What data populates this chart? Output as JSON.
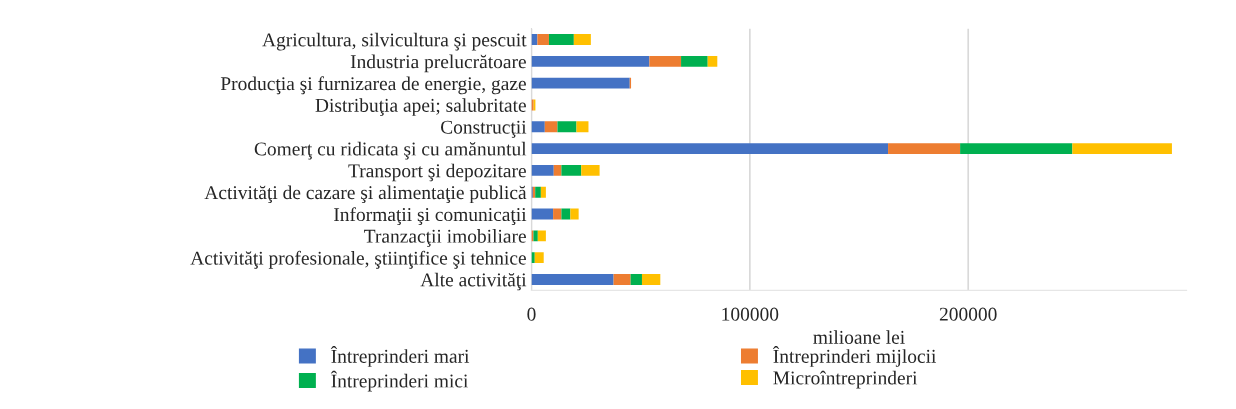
{
  "chart_data": {
    "type": "bar",
    "orientation": "horizontal",
    "stacked": true,
    "xlabel": "milioane lei",
    "categories": [
      "Agricultura, silvicultura şi pescuit",
      "Industria prelucrătoare",
      "Producţia şi furnizarea de energie, gaze",
      "Distribuţia apei; salubritate",
      "Construcţii",
      "Comerţ cu ridicata şi cu amănuntul",
      "Transport şi depozitare",
      "Activităţi de cazare şi alimentaţie publică",
      "Informaţii şi comunicaţii",
      "Tranzacţii imobiliare",
      "Activităţi profesionale, ştiinţifice şi tehnice",
      "Alte activităţi"
    ],
    "series": [
      {
        "name": "Întreprinderi mari",
        "color": "#4472c4",
        "values": [
          2700,
          54000,
          45000,
          null,
          6100,
          163300,
          10200,
          600,
          9900,
          null,
          null,
          37600
        ]
      },
      {
        "name": "Întreprinderi mijlocii",
        "color": "#ed7d31",
        "values": [
          5300,
          14500,
          600,
          1000,
          5800,
          33000,
          3500,
          1100,
          3800,
          900,
          null,
          7800
        ]
      },
      {
        "name": "Întreprinderi mici",
        "color": "#00b050",
        "values": [
          11400,
          12200,
          null,
          null,
          8700,
          51400,
          9100,
          2600,
          4100,
          2000,
          1500,
          5200
        ]
      },
      {
        "name": "Microîntreprinderi",
        "color": "#ffc000",
        "values": [
          7800,
          4400,
          0,
          800,
          5500,
          45600,
          8400,
          2300,
          3800,
          3700,
          4100,
          8400
        ]
      }
    ],
    "xlim": [
      0,
      300000
    ],
    "xticks": [
      0,
      100000,
      200000
    ],
    "grid": "x",
    "legend": "bottom"
  }
}
